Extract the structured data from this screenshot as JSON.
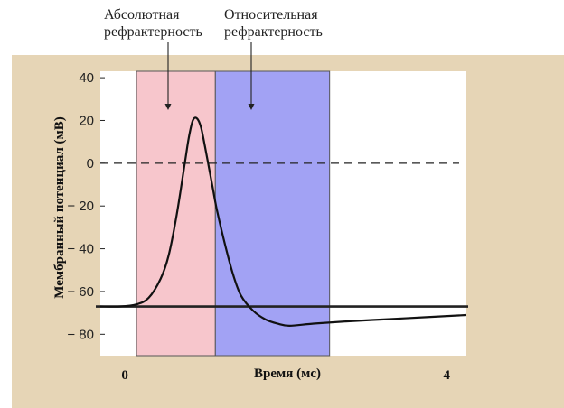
{
  "chart_data": {
    "type": "line",
    "xlabel": "Время (мс)",
    "ylabel": "Мембранный потенциал (мВ)",
    "xlim": [
      -0.35,
      4.2
    ],
    "ylim": [
      -90,
      43
    ],
    "x_ticks": [
      {
        "value": 0,
        "label": "0"
      },
      {
        "value": 4,
        "label": "4"
      }
    ],
    "y_ticks": [
      {
        "value": 40,
        "label": "40"
      },
      {
        "value": 20,
        "label": "20"
      },
      {
        "value": 0,
        "label": "0"
      },
      {
        "value": -20,
        "label": "− 20"
      },
      {
        "value": -40,
        "label": "− 40"
      },
      {
        "value": -60,
        "label": "− 60"
      },
      {
        "value": -80,
        "label": "− 80"
      }
    ],
    "regions": [
      {
        "label": "Абсолютная\nрефрактерность",
        "x_start": 0.1,
        "x_end": 1.08,
        "color": "#f7c6cc"
      },
      {
        "label": "Относительная\nрефрактерность",
        "x_start": 1.08,
        "x_end": 2.5,
        "color": "#a2a2f4"
      }
    ],
    "reference_lines": [
      {
        "y": 0,
        "style": "dashed"
      },
      {
        "y": -67,
        "style": "solid"
      }
    ],
    "series": [
      {
        "color": "#111111",
        "x": [
          -0.35,
          -0.1,
          0.1,
          0.25,
          0.4,
          0.5,
          0.6,
          0.7,
          0.75,
          0.8,
          0.85,
          0.9,
          0.95,
          1.0,
          1.05,
          1.1,
          1.2,
          1.3,
          1.4,
          1.55,
          1.7,
          1.85,
          2.0,
          2.3,
          2.7,
          3.2,
          3.7,
          4.2
        ],
        "y": [
          -67,
          -67,
          -66,
          -63,
          -54,
          -43,
          -24,
          0,
          12,
          20,
          21,
          17,
          8,
          -2,
          -12,
          -22,
          -38,
          -52,
          -62,
          -69,
          -73,
          -75,
          -76,
          -75,
          -74,
          -73,
          -72,
          -71
        ]
      }
    ]
  }
}
